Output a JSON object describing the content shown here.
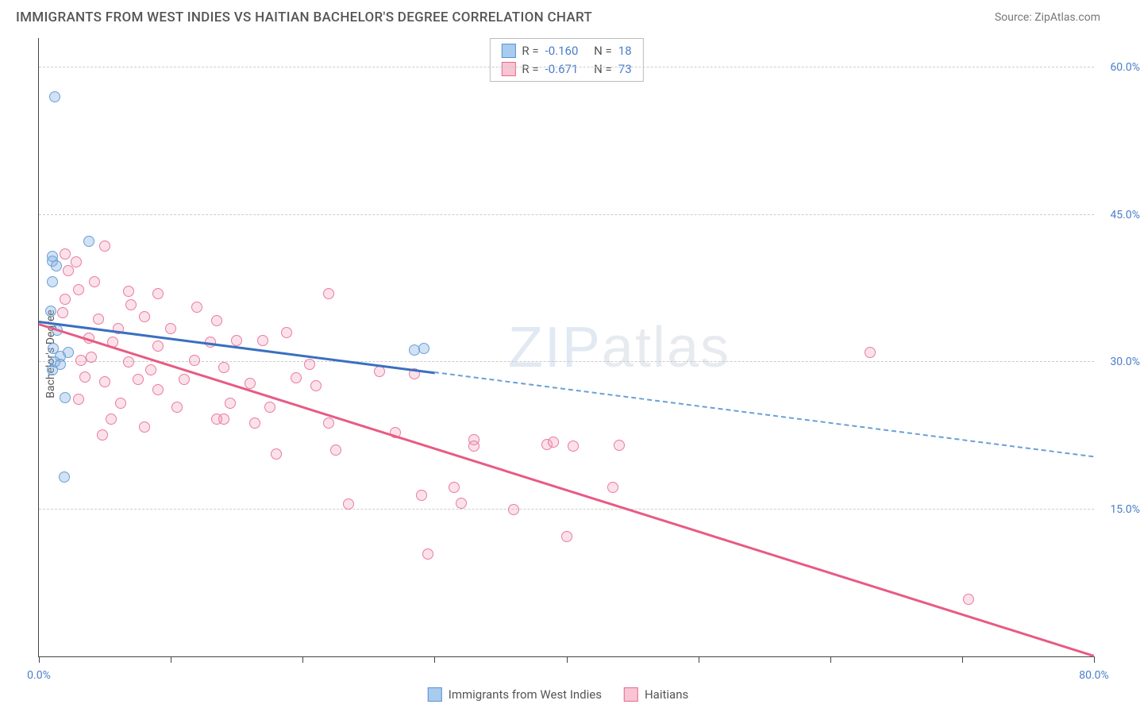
{
  "title": "IMMIGRANTS FROM WEST INDIES VS HAITIAN BACHELOR'S DEGREE CORRELATION CHART",
  "source": "Source: ZipAtlas.com",
  "ylabel": "Bachelor's Degree",
  "watermark_a": "ZIP",
  "watermark_b": "atlas",
  "chart": {
    "type": "scatter",
    "xlim": [
      0,
      80
    ],
    "ylim": [
      0,
      63
    ],
    "ytick_values": [
      15,
      30,
      45,
      60
    ],
    "ytick_labels": [
      "15.0%",
      "30.0%",
      "45.0%",
      "60.0%"
    ],
    "xtick_values": [
      0,
      10,
      20,
      30,
      40,
      50,
      60,
      70,
      80
    ],
    "xaxis_label_left": "0.0%",
    "xaxis_label_right": "80.0%",
    "background_color": "#ffffff",
    "grid_color": "#cccccc",
    "marker_size": 14
  },
  "stats": {
    "rows": [
      {
        "swatch": "blue",
        "r_label": "R =",
        "r_val": "-0.160",
        "n_label": "N =",
        "n_val": "18"
      },
      {
        "swatch": "pink",
        "r_label": "R =",
        "r_val": "-0.671",
        "n_label": "N =",
        "n_val": "73"
      }
    ]
  },
  "legend": {
    "items": [
      {
        "swatch": "blue",
        "label": "Immigrants from West Indies"
      },
      {
        "swatch": "pink",
        "label": "Haitians"
      }
    ]
  },
  "colors": {
    "blue_fill": "#a8ccee",
    "blue_stroke": "#5b8fd6",
    "blue_line": "#3a6fc0",
    "pink_fill": "#f8c5d3",
    "pink_stroke": "#e86a8e",
    "pink_line": "#e85a84",
    "axis_text": "#4a7ec9"
  },
  "series": {
    "blue": {
      "points": [
        [
          1.2,
          57.0
        ],
        [
          3.8,
          42.3
        ],
        [
          1.0,
          40.3
        ],
        [
          1.3,
          39.8
        ],
        [
          1.0,
          38.2
        ],
        [
          1.0,
          40.8
        ],
        [
          0.9,
          35.2
        ],
        [
          1.4,
          33.2
        ],
        [
          1.6,
          30.6
        ],
        [
          1.1,
          31.4
        ],
        [
          1.2,
          30.0
        ],
        [
          1.6,
          29.8
        ],
        [
          1.0,
          29.2
        ],
        [
          2.0,
          26.4
        ],
        [
          1.9,
          18.3
        ],
        [
          28.5,
          31.2
        ],
        [
          29.2,
          31.4
        ],
        [
          2.2,
          31.0
        ]
      ],
      "regression": {
        "x1": 0,
        "y1": 34.2,
        "x2_solid": 30,
        "y2_solid": 29.0,
        "x2_dash": 80,
        "y2_dash": 20.4
      }
    },
    "pink": {
      "points": [
        [
          2.0,
          41.0
        ],
        [
          2.8,
          40.2
        ],
        [
          5.0,
          41.8
        ],
        [
          2.2,
          39.3
        ],
        [
          4.2,
          38.2
        ],
        [
          3.0,
          37.4
        ],
        [
          2.0,
          36.4
        ],
        [
          1.8,
          35.0
        ],
        [
          6.8,
          37.2
        ],
        [
          9.0,
          37.0
        ],
        [
          8.0,
          34.6
        ],
        [
          6.0,
          33.4
        ],
        [
          3.8,
          32.4
        ],
        [
          5.6,
          32.0
        ],
        [
          9.0,
          31.6
        ],
        [
          4.0,
          30.5
        ],
        [
          6.8,
          30.0
        ],
        [
          3.5,
          28.5
        ],
        [
          7.5,
          28.2
        ],
        [
          9.0,
          27.2
        ],
        [
          13.5,
          34.2
        ],
        [
          13.0,
          32.0
        ],
        [
          11.8,
          30.2
        ],
        [
          12.0,
          35.6
        ],
        [
          10.5,
          25.4
        ],
        [
          14.0,
          29.4
        ],
        [
          15.0,
          32.2
        ],
        [
          14.5,
          25.8
        ],
        [
          14.0,
          24.2
        ],
        [
          16.4,
          23.8
        ],
        [
          17.0,
          32.2
        ],
        [
          18.8,
          33.0
        ],
        [
          19.5,
          28.4
        ],
        [
          22.0,
          37.0
        ],
        [
          20.5,
          29.8
        ],
        [
          21.0,
          27.6
        ],
        [
          22.0,
          23.8
        ],
        [
          22.5,
          21.0
        ],
        [
          23.5,
          15.5
        ],
        [
          25.8,
          29.0
        ],
        [
          27.0,
          22.8
        ],
        [
          28.5,
          28.8
        ],
        [
          29.0,
          16.4
        ],
        [
          29.5,
          10.4
        ],
        [
          31.5,
          17.2
        ],
        [
          32.0,
          15.6
        ],
        [
          33.0,
          22.1
        ],
        [
          33.0,
          21.4
        ],
        [
          36.0,
          15.0
        ],
        [
          38.5,
          21.6
        ],
        [
          39.0,
          21.8
        ],
        [
          40.5,
          21.4
        ],
        [
          40.0,
          12.2
        ],
        [
          43.5,
          17.2
        ],
        [
          44.0,
          21.5
        ],
        [
          5.5,
          24.2
        ],
        [
          6.2,
          25.8
        ],
        [
          8.5,
          29.2
        ],
        [
          10.0,
          33.4
        ],
        [
          7.0,
          35.8
        ],
        [
          4.5,
          34.4
        ],
        [
          3.2,
          30.2
        ],
        [
          5.0,
          28.0
        ],
        [
          11.0,
          28.2
        ],
        [
          17.5,
          25.4
        ],
        [
          3.0,
          26.2
        ],
        [
          4.8,
          22.6
        ],
        [
          8.0,
          23.4
        ],
        [
          13.5,
          24.2
        ],
        [
          18.0,
          20.6
        ],
        [
          63.0,
          31.0
        ],
        [
          70.5,
          5.8
        ],
        [
          16.0,
          27.8
        ]
      ],
      "regression": {
        "x1": 0,
        "y1": 34.0,
        "x2_solid": 80,
        "y2_solid": 0.2
      }
    }
  }
}
